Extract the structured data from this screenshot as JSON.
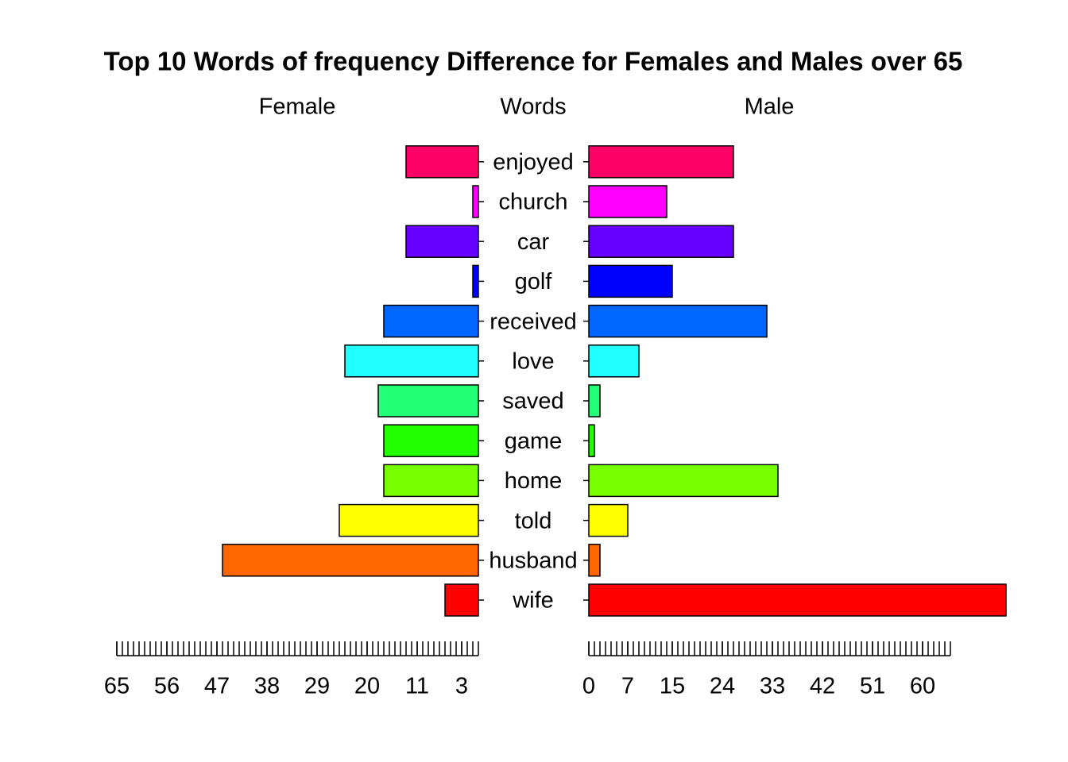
{
  "chart_data": {
    "type": "pyramid",
    "title": "Top 10 Words of frequency Difference for Females and Males over 65",
    "categories_label": "Words",
    "categories": [
      "wife",
      "husband",
      "told",
      "home",
      "game",
      "saved",
      "love",
      "received",
      "golf",
      "car",
      "church",
      "enjoyed"
    ],
    "colors": [
      "#ff0000",
      "#ff6600",
      "#ffff00",
      "#77ff00",
      "#22ff00",
      "#22ff77",
      "#22ffff",
      "#0066ff",
      "#0000ff",
      "#6600ff",
      "#ff00ff",
      "#ff0066"
    ],
    "series": [
      {
        "name": "Female",
        "side": "left",
        "values": [
          6,
          46,
          25,
          17,
          17,
          18,
          24,
          17,
          1,
          13,
          1,
          13
        ],
        "xlim": [
          0,
          65
        ],
        "xticks": [
          65,
          56,
          47,
          38,
          29,
          20,
          11,
          3
        ]
      },
      {
        "name": "Male",
        "side": "right",
        "values": [
          75,
          2,
          7,
          34,
          1,
          2,
          9,
          32,
          15,
          26,
          14,
          26
        ],
        "xlim": [
          0,
          65
        ],
        "xticks": [
          0,
          7,
          15,
          24,
          33,
          42,
          51,
          60
        ]
      }
    ]
  }
}
